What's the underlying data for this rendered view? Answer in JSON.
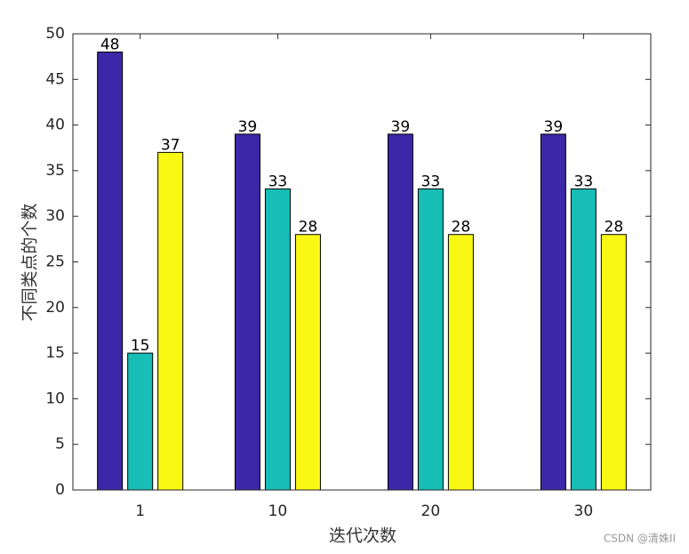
{
  "chart_data": {
    "type": "bar",
    "x": [
      1,
      10,
      20,
      30
    ],
    "series": [
      {
        "color": "#3b27a7",
        "values": [
          48,
          39,
          39,
          39
        ]
      },
      {
        "color": "#16beb5",
        "values": [
          15,
          33,
          33,
          33
        ]
      },
      {
        "color": "#f8f814",
        "values": [
          37,
          28,
          28,
          28
        ]
      }
    ],
    "xlabel": "迭代次数",
    "ylabel": "不同类点的个数",
    "xlim": [
      -3.4,
      34.4
    ],
    "xticks": [
      1,
      10,
      20,
      30
    ],
    "ylim": [
      0,
      50
    ],
    "yticks": [
      0,
      5,
      10,
      15,
      20,
      25,
      30,
      35,
      40,
      45,
      50
    ],
    "watermark": "CSDN @清姝II"
  }
}
